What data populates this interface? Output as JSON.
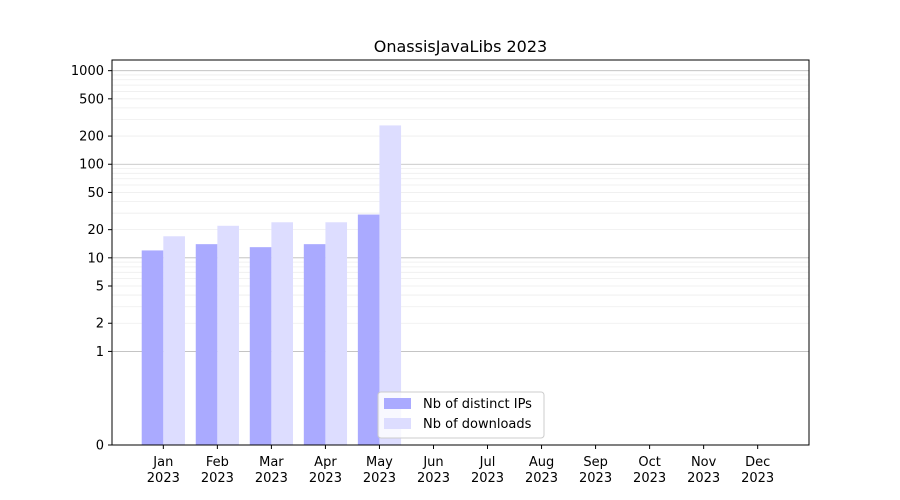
{
  "chart_data": {
    "type": "bar",
    "title": "OnassisJavaLibs 2023",
    "xlabel": "",
    "ylabel": "",
    "categories": [
      [
        "Jan",
        "2023"
      ],
      [
        "Feb",
        "2023"
      ],
      [
        "Mar",
        "2023"
      ],
      [
        "Apr",
        "2023"
      ],
      [
        "May",
        "2023"
      ],
      [
        "Jun",
        "2023"
      ],
      [
        "Jul",
        "2023"
      ],
      [
        "Aug",
        "2023"
      ],
      [
        "Sep",
        "2023"
      ],
      [
        "Oct",
        "2023"
      ],
      [
        "Nov",
        "2023"
      ],
      [
        "Dec",
        "2023"
      ]
    ],
    "y_scale": "symlog",
    "ylim": [
      0,
      1300
    ],
    "y_ticks": [
      0,
      1,
      2,
      5,
      10,
      20,
      50,
      100,
      200,
      500,
      1000
    ],
    "y_tick_labels": [
      "0",
      "1",
      "2",
      "5",
      "10",
      "20",
      "50",
      "100",
      "200",
      "500",
      "1000"
    ],
    "grid": true,
    "legend_position": "bottom-center",
    "series": [
      {
        "name": "Nb of distinct IPs",
        "color": "#aaaaff",
        "values": [
          12,
          14,
          13,
          14,
          29,
          0,
          0,
          0,
          0,
          0,
          0,
          0
        ]
      },
      {
        "name": "Nb of downloads",
        "color": "#ddddff",
        "values": [
          17,
          22,
          24,
          24,
          260,
          0,
          0,
          0,
          0,
          0,
          0,
          0
        ]
      }
    ]
  }
}
